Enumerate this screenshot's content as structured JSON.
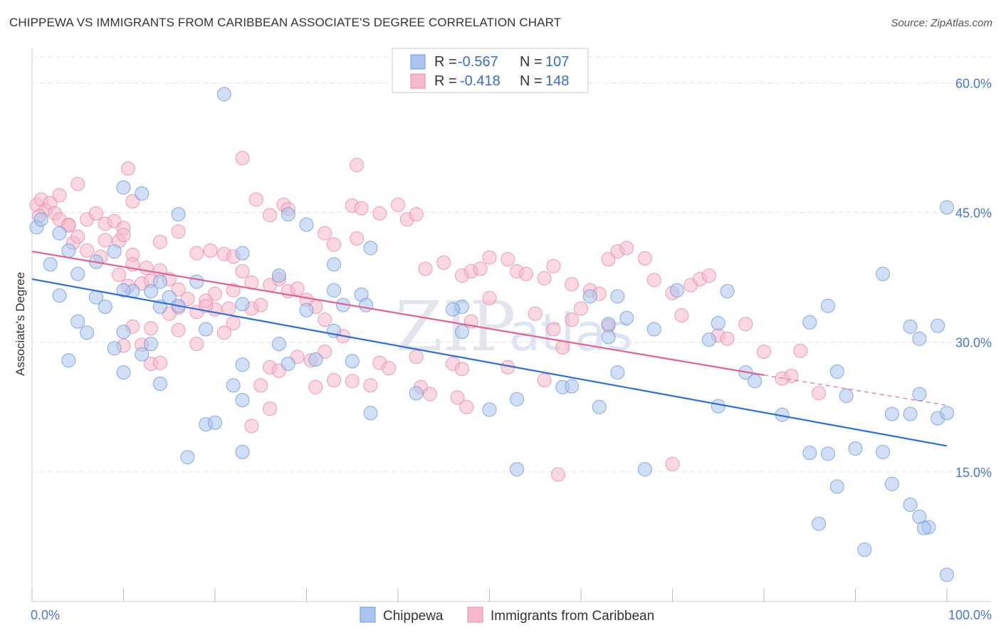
{
  "header": {
    "title": "CHIPPEWA VS IMMIGRANTS FROM CARIBBEAN ASSOCIATE'S DEGREE CORRELATION CHART",
    "source": "Source: ZipAtlas.com"
  },
  "watermark": {
    "zip": "ZIP",
    "atlas": "atlas"
  },
  "chart_data": {
    "type": "scatter",
    "title": "CHIPPEWA VS IMMIGRANTS FROM CARIBBEAN ASSOCIATE'S DEGREE CORRELATION CHART",
    "xlabel": "",
    "ylabel": "Associate's Degree",
    "xlim": [
      0,
      100
    ],
    "ylim": [
      0,
      63
    ],
    "y_ticks": [
      15,
      30,
      45,
      60
    ],
    "y_tick_labels": [
      "15.0%",
      "30.0%",
      "45.0%",
      "60.0%"
    ],
    "x_tick_labels": {
      "min": "0.0%",
      "max": "100.0%"
    },
    "grid": true,
    "legend_position": "top-center",
    "colors": {
      "Chippewa": {
        "fill": "#a9c5ee",
        "stroke": "#6d99da",
        "line": "#2f6fd1"
      },
      "Immigrants from Caribbean": {
        "fill": "#f6b8cb",
        "stroke": "#ea8aa8",
        "line": "#e0628e"
      }
    },
    "legend_rows": [
      {
        "r_label": "R = ",
        "r": "-0.567",
        "n_label": "N = ",
        "n": "107"
      },
      {
        "r_label": "R = ",
        "r": "-0.418",
        "n_label": "N = ",
        "n": "148"
      }
    ],
    "series": [
      {
        "name": "Chippewa",
        "r": -0.567,
        "n": 107,
        "trend": {
          "x": [
            0,
            100
          ],
          "y": [
            37.3,
            18.0
          ]
        },
        "points": [
          [
            21,
            58.7
          ],
          [
            12,
            47.2
          ],
          [
            10,
            47.9
          ],
          [
            16,
            44.8
          ],
          [
            28,
            44.8
          ],
          [
            30,
            43.6
          ],
          [
            3,
            42.6
          ],
          [
            0.5,
            43.3
          ],
          [
            1,
            44.2
          ],
          [
            4,
            40.6
          ],
          [
            2,
            39.0
          ],
          [
            9,
            40.5
          ],
          [
            23,
            40.3
          ],
          [
            27,
            37.7
          ],
          [
            33,
            39.0
          ],
          [
            37,
            40.9
          ],
          [
            7,
            39.3
          ],
          [
            5,
            37.9
          ],
          [
            3,
            35.4
          ],
          [
            7,
            35.2
          ],
          [
            11,
            35.9
          ],
          [
            13,
            35.9
          ],
          [
            14,
            37.0
          ],
          [
            15,
            35.2
          ],
          [
            10,
            36.0
          ],
          [
            18,
            37.0
          ],
          [
            33,
            36.0
          ],
          [
            36,
            35.5
          ],
          [
            47,
            34.1
          ],
          [
            46,
            33.8
          ],
          [
            34,
            34.3
          ],
          [
            36.5,
            34.3
          ],
          [
            30,
            33.7
          ],
          [
            14,
            34.1
          ],
          [
            16,
            34.2
          ],
          [
            23,
            34.4
          ],
          [
            8,
            34.1
          ],
          [
            5,
            32.4
          ],
          [
            6,
            31.1
          ],
          [
            10,
            31.2
          ],
          [
            19,
            31.5
          ],
          [
            33,
            31.3
          ],
          [
            47,
            31.2
          ],
          [
            61,
            35.3
          ],
          [
            64,
            35.3
          ],
          [
            70.5,
            36.0
          ],
          [
            74,
            30.3
          ],
          [
            63,
            30.6
          ],
          [
            68,
            31.5
          ],
          [
            65,
            32.8
          ],
          [
            63,
            32.1
          ],
          [
            64,
            26.5
          ],
          [
            58,
            24.8
          ],
          [
            59,
            24.9
          ],
          [
            53,
            23.4
          ],
          [
            50,
            22.2
          ],
          [
            62,
            22.5
          ],
          [
            42,
            24.1
          ],
          [
            37,
            21.8
          ],
          [
            4,
            27.9
          ],
          [
            9,
            29.3
          ],
          [
            12,
            28.6
          ],
          [
            13,
            29.8
          ],
          [
            23,
            27.4
          ],
          [
            28,
            27.5
          ],
          [
            31,
            28.0
          ],
          [
            35,
            27.8
          ],
          [
            27,
            29.8
          ],
          [
            10,
            26.5
          ],
          [
            14,
            25.2
          ],
          [
            22,
            25.0
          ],
          [
            23,
            23.3
          ],
          [
            19,
            20.5
          ],
          [
            20,
            20.7
          ],
          [
            17,
            16.7
          ],
          [
            23,
            17.3
          ],
          [
            53,
            15.3
          ],
          [
            67,
            15.3
          ],
          [
            75,
            32.2
          ],
          [
            78,
            26.5
          ],
          [
            79,
            25.5
          ],
          [
            85,
            32.3
          ],
          [
            87,
            34.2
          ],
          [
            88,
            26.6
          ],
          [
            76,
            35.9
          ],
          [
            96,
            31.8
          ],
          [
            99,
            31.9
          ],
          [
            97,
            30.4
          ],
          [
            100,
            45.6
          ],
          [
            89,
            23.8
          ],
          [
            94,
            21.7
          ],
          [
            96,
            21.7
          ],
          [
            97,
            24.0
          ],
          [
            99,
            21.2
          ],
          [
            100,
            21.8
          ],
          [
            93,
            37.9
          ],
          [
            75,
            22.6
          ],
          [
            82,
            21.6
          ],
          [
            85,
            17.2
          ],
          [
            87,
            17.1
          ],
          [
            90,
            17.7
          ],
          [
            88,
            13.3
          ],
          [
            93,
            17.3
          ],
          [
            94,
            13.6
          ],
          [
            96,
            11.2
          ],
          [
            97,
            9.8
          ],
          [
            98,
            8.6
          ],
          [
            91,
            6.0
          ],
          [
            86,
            9.0
          ],
          [
            97.5,
            8.5
          ],
          [
            100,
            3.1
          ]
        ]
      },
      {
        "name": "Immigrants from Caribbean",
        "r": -0.418,
        "n": 148,
        "trend": {
          "x": [
            0,
            80
          ],
          "y": [
            40.5,
            26.2
          ]
        },
        "trend_dashed": {
          "x": [
            80,
            100
          ],
          "y": [
            26.2,
            22.7
          ]
        },
        "points": [
          [
            0.5,
            45.9
          ],
          [
            1,
            46.5
          ],
          [
            1.5,
            45.3
          ],
          [
            2,
            46.1
          ],
          [
            0.8,
            44.6
          ],
          [
            2.5,
            44.9
          ],
          [
            3,
            44.2
          ],
          [
            4,
            43.6
          ],
          [
            4.5,
            41.5
          ],
          [
            5,
            42.2
          ],
          [
            6,
            44.2
          ],
          [
            7,
            44.9
          ],
          [
            8,
            43.7
          ],
          [
            9,
            44.0
          ],
          [
            10,
            43.2
          ],
          [
            9.5,
            41.7
          ],
          [
            10,
            42.4
          ],
          [
            8,
            41.8
          ],
          [
            6,
            40.6
          ],
          [
            7.5,
            39.9
          ],
          [
            11,
            40.1
          ],
          [
            11,
            39.0
          ],
          [
            9.5,
            37.8
          ],
          [
            10.5,
            36.5
          ],
          [
            12,
            36.8
          ],
          [
            12.5,
            38.6
          ],
          [
            13,
            37.1
          ],
          [
            14,
            38.3
          ],
          [
            15,
            37.3
          ],
          [
            16,
            36.1
          ],
          [
            14,
            41.6
          ],
          [
            16,
            42.8
          ],
          [
            18,
            40.3
          ],
          [
            19.5,
            40.6
          ],
          [
            21,
            40.2
          ],
          [
            22,
            39.9
          ],
          [
            23,
            38.2
          ],
          [
            24,
            36.9
          ],
          [
            20,
            35.6
          ],
          [
            22,
            36.0
          ],
          [
            17,
            35.0
          ],
          [
            19,
            34.8
          ],
          [
            16,
            34.0
          ],
          [
            15,
            33.3
          ],
          [
            18,
            33.5
          ],
          [
            20,
            33.8
          ],
          [
            21,
            31.1
          ],
          [
            18,
            29.8
          ],
          [
            16,
            31.4
          ],
          [
            13,
            31.6
          ],
          [
            11,
            31.8
          ],
          [
            12,
            29.7
          ],
          [
            10,
            29.6
          ],
          [
            13,
            27.5
          ],
          [
            22,
            32.2
          ],
          [
            24,
            33.9
          ],
          [
            25,
            34.3
          ],
          [
            26,
            36.6
          ],
          [
            27,
            37.3
          ],
          [
            28,
            35.9
          ],
          [
            29,
            36.2
          ],
          [
            30,
            34.9
          ],
          [
            31,
            34.1
          ],
          [
            32,
            32.6
          ],
          [
            14,
            27.6
          ],
          [
            29,
            28.3
          ],
          [
            30.5,
            27.9
          ],
          [
            31,
            24.8
          ],
          [
            33,
            25.6
          ],
          [
            35,
            25.5
          ],
          [
            32,
            28.9
          ],
          [
            34,
            30.7
          ],
          [
            25,
            25.0
          ],
          [
            26,
            22.3
          ],
          [
            24,
            20.3
          ],
          [
            26,
            27.1
          ],
          [
            27,
            26.7
          ],
          [
            38,
            27.6
          ],
          [
            37,
            25.0
          ],
          [
            39,
            27.0
          ],
          [
            42,
            28.3
          ],
          [
            42.5,
            24.8
          ],
          [
            43.5,
            24.0
          ],
          [
            46,
            27.5
          ],
          [
            47,
            26.9
          ],
          [
            46.5,
            23.6
          ],
          [
            47.5,
            22.5
          ],
          [
            32,
            42.6
          ],
          [
            33,
            41.3
          ],
          [
            35.5,
            42.0
          ],
          [
            38,
            44.9
          ],
          [
            41,
            44.2
          ],
          [
            42,
            44.8
          ],
          [
            40,
            45.9
          ],
          [
            35,
            45.8
          ],
          [
            36,
            45.5
          ],
          [
            35.5,
            50.5
          ],
          [
            23,
            51.3
          ],
          [
            24.5,
            46.5
          ],
          [
            27.5,
            45.9
          ],
          [
            28,
            45.4
          ],
          [
            26,
            44.7
          ],
          [
            43,
            38.5
          ],
          [
            45,
            39.2
          ],
          [
            47,
            37.7
          ],
          [
            48,
            38.2
          ],
          [
            49,
            38.5
          ],
          [
            50,
            39.8
          ],
          [
            52,
            39.6
          ],
          [
            53,
            38.2
          ],
          [
            54,
            37.9
          ],
          [
            56,
            37.4
          ],
          [
            57,
            38.8
          ],
          [
            59,
            36.7
          ],
          [
            61,
            36.0
          ],
          [
            62,
            35.6
          ],
          [
            63,
            39.6
          ],
          [
            64,
            40.5
          ],
          [
            65,
            40.9
          ],
          [
            67,
            39.7
          ],
          [
            68,
            37.2
          ],
          [
            70,
            35.7
          ],
          [
            71,
            33.1
          ],
          [
            72,
            36.6
          ],
          [
            73,
            37.3
          ],
          [
            74,
            37.7
          ],
          [
            75,
            30.8
          ],
          [
            76,
            30.4
          ],
          [
            78,
            32.1
          ],
          [
            80,
            28.9
          ],
          [
            82,
            25.8
          ],
          [
            83,
            26.1
          ],
          [
            86,
            24.1
          ],
          [
            84,
            29.0
          ],
          [
            4,
            43.5
          ],
          [
            3,
            47.0
          ],
          [
            5,
            48.3
          ],
          [
            10.5,
            50.1
          ],
          [
            11,
            46.3
          ],
          [
            19,
            34.2
          ],
          [
            21.5,
            33.9
          ],
          [
            48,
            32.4
          ],
          [
            50,
            35.1
          ],
          [
            55,
            33.3
          ],
          [
            57,
            31.5
          ],
          [
            58,
            29.4
          ],
          [
            59,
            32.6
          ],
          [
            60,
            33.9
          ],
          [
            52,
            27.1
          ],
          [
            56,
            25.6
          ],
          [
            63,
            31.9
          ],
          [
            57.5,
            14.7
          ],
          [
            70,
            15.9
          ]
        ]
      }
    ]
  },
  "bottom_legend": {
    "items": [
      {
        "label": "Chippewa"
      },
      {
        "label": "Immigrants from Caribbean"
      }
    ]
  }
}
